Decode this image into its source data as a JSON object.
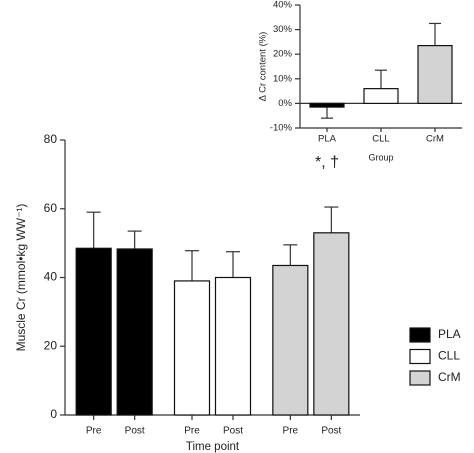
{
  "chart_data": [
    {
      "type": "bar",
      "ylabel": "Muscle Cr (mmol•kg WW⁻¹)",
      "xlabel": "Time point",
      "categories": [
        "Pre",
        "Post"
      ],
      "series": [
        {
          "name": "PLA",
          "color": "#000000",
          "values": [
            48.5,
            48.3
          ],
          "errors": [
            10.5,
            5.2
          ]
        },
        {
          "name": "CLL",
          "color": "#ffffff",
          "values": [
            39,
            40
          ],
          "errors": [
            8.8,
            7.5
          ]
        },
        {
          "name": "CrM",
          "color": "#d3d3d3",
          "values": [
            43.5,
            53
          ],
          "errors": [
            6,
            7.5
          ]
        }
      ],
      "ylim": [
        0,
        80
      ],
      "yticks": [
        0,
        20,
        40,
        60,
        80
      ],
      "legend": "right"
    },
    {
      "type": "bar",
      "ylabel": "Δ Cr content (%)",
      "xlabel": "Group",
      "categories": [
        "PLA",
        "CLL",
        "CrM"
      ],
      "values": [
        -1.5,
        6,
        23.5
      ],
      "errors": [
        4.5,
        7.5,
        9
      ],
      "colors": [
        "#000000",
        "#ffffff",
        "#d3d3d3"
      ],
      "ylim": [
        -10,
        40
      ],
      "yticks": [
        {
          "value": -10,
          "label": "-10%"
        },
        {
          "value": 0,
          "label": "0%"
        },
        {
          "value": 10,
          "label": "10%"
        },
        {
          "value": 20,
          "label": "20%"
        },
        {
          "value": 30,
          "label": "30%"
        },
        {
          "value": 40,
          "label": "40%"
        }
      ],
      "annotations": [
        {
          "text": "*, †",
          "category": 0
        }
      ]
    }
  ]
}
